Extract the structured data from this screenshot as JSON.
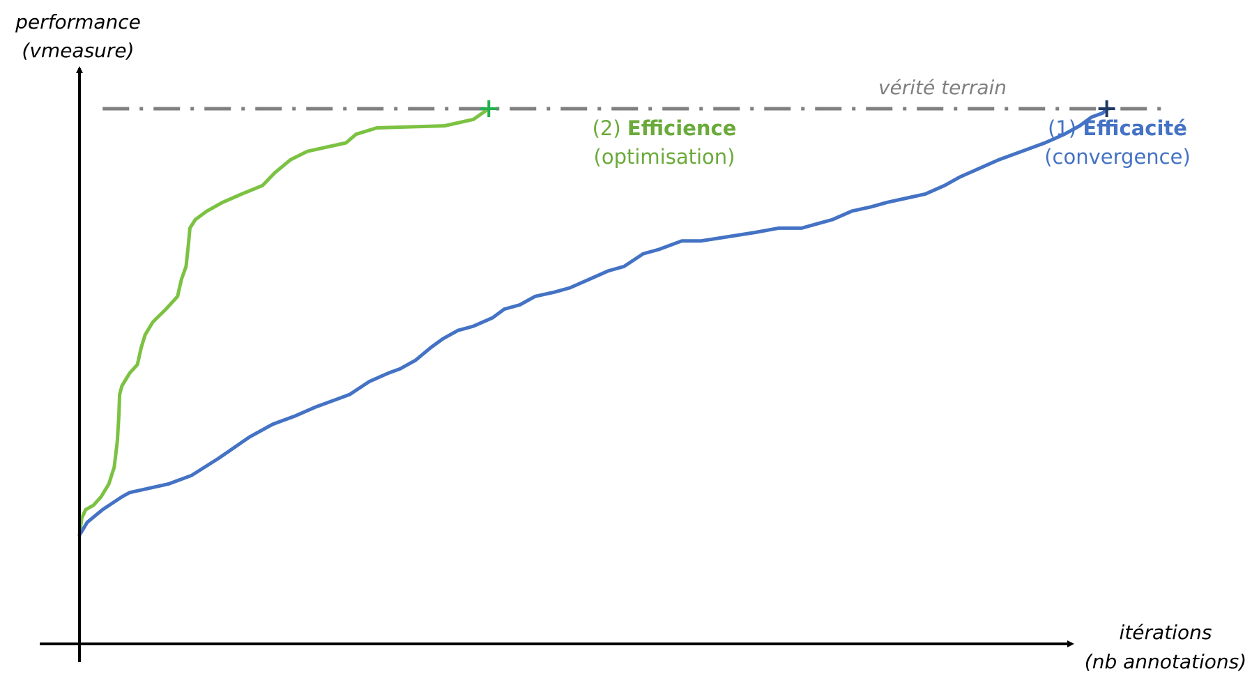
{
  "chart_data": {
    "type": "line",
    "title": "",
    "ylabel_line1": "performance",
    "ylabel_line2": "(vmeasure)",
    "xlabel_line1": "itérations",
    "xlabel_line2": "(nb annotations)",
    "axis_ticks": "none",
    "grid": false,
    "reference_line": {
      "label": "vérité terrain",
      "value": 1.0,
      "color": "#808080",
      "style": "dash-dot"
    },
    "series": [
      {
        "color": "#7cc242",
        "text_color": "#6aaa3a",
        "marker_color": "#22b14c",
        "annotation": {
          "prefix": "(2) ",
          "bold": "Efficience",
          "line2": "(optimisation)"
        },
        "points": [
          [
            0.0,
            0.0
          ],
          [
            0.3,
            0.04
          ],
          [
            0.8,
            0.06
          ],
          [
            1.8,
            0.07
          ],
          [
            2.8,
            0.09
          ],
          [
            3.8,
            0.12
          ],
          [
            4.5,
            0.16
          ],
          [
            4.9,
            0.22
          ],
          [
            5.1,
            0.28
          ],
          [
            5.2,
            0.33
          ],
          [
            5.5,
            0.35
          ],
          [
            6.5,
            0.38
          ],
          [
            7.5,
            0.4
          ],
          [
            8.0,
            0.44
          ],
          [
            8.5,
            0.47
          ],
          [
            9.5,
            0.5
          ],
          [
            11.2,
            0.53
          ],
          [
            12.7,
            0.56
          ],
          [
            13.2,
            0.6
          ],
          [
            13.8,
            0.63
          ],
          [
            14.1,
            0.68
          ],
          [
            14.3,
            0.72
          ],
          [
            15.0,
            0.74
          ],
          [
            16.5,
            0.76
          ],
          [
            18.5,
            0.78
          ],
          [
            21.0,
            0.8
          ],
          [
            23.7,
            0.82
          ],
          [
            25.3,
            0.85
          ],
          [
            27.3,
            0.88
          ],
          [
            29.5,
            0.9
          ],
          [
            34.5,
            0.92
          ],
          [
            35.8,
            0.94
          ],
          [
            38.5,
            0.955
          ],
          [
            47.3,
            0.96
          ],
          [
            51.0,
            0.975
          ],
          [
            53.0,
            1.0
          ]
        ]
      },
      {
        "color": "#4472c4",
        "text_color": "#4472c4",
        "marker_color": "#1f3864",
        "annotation": {
          "prefix": "(1) ",
          "bold": "Efficacité",
          "line2": "(convergence)"
        },
        "points": [
          [
            0.0,
            0.0
          ],
          [
            1.0,
            0.03
          ],
          [
            3.0,
            0.06
          ],
          [
            5.5,
            0.09
          ],
          [
            6.5,
            0.1
          ],
          [
            9.0,
            0.11
          ],
          [
            11.5,
            0.12
          ],
          [
            14.5,
            0.14
          ],
          [
            18.0,
            0.18
          ],
          [
            22.0,
            0.23
          ],
          [
            25.0,
            0.26
          ],
          [
            28.0,
            0.28
          ],
          [
            30.5,
            0.3
          ],
          [
            33.5,
            0.32
          ],
          [
            35.0,
            0.33
          ],
          [
            37.5,
            0.36
          ],
          [
            40.0,
            0.38
          ],
          [
            41.5,
            0.39
          ],
          [
            43.5,
            0.41
          ],
          [
            45.5,
            0.44
          ],
          [
            47.0,
            0.46
          ],
          [
            49.0,
            0.48
          ],
          [
            51.0,
            0.49
          ],
          [
            53.5,
            0.51
          ],
          [
            55.0,
            0.53
          ],
          [
            57.0,
            0.54
          ],
          [
            59.0,
            0.56
          ],
          [
            61.5,
            0.57
          ],
          [
            63.5,
            0.58
          ],
          [
            66.0,
            0.6
          ],
          [
            68.5,
            0.62
          ],
          [
            70.5,
            0.63
          ],
          [
            73.0,
            0.66
          ],
          [
            75.0,
            0.67
          ],
          [
            78.0,
            0.69
          ],
          [
            80.5,
            0.69
          ],
          [
            84.0,
            0.7
          ],
          [
            87.5,
            0.71
          ],
          [
            90.5,
            0.72
          ],
          [
            93.5,
            0.72
          ],
          [
            95.5,
            0.73
          ],
          [
            97.5,
            0.74
          ],
          [
            100.0,
            0.76
          ],
          [
            102.5,
            0.77
          ],
          [
            104.5,
            0.78
          ],
          [
            107.0,
            0.79
          ],
          [
            109.5,
            0.8
          ],
          [
            112.0,
            0.82
          ],
          [
            114.0,
            0.84
          ],
          [
            116.5,
            0.86
          ],
          [
            119.0,
            0.88
          ],
          [
            122.0,
            0.9
          ],
          [
            125.0,
            0.92
          ],
          [
            127.5,
            0.94
          ],
          [
            129.5,
            0.96
          ],
          [
            131.0,
            0.98
          ],
          [
            132.5,
            0.99
          ],
          [
            133.0,
            1.0
          ]
        ]
      }
    ]
  }
}
